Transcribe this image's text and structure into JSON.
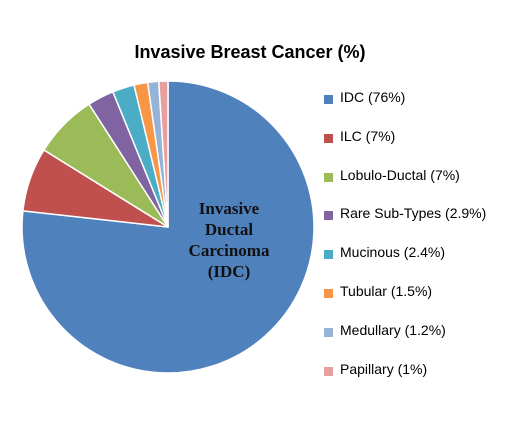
{
  "chart_data": {
    "type": "pie",
    "title": "Invasive Breast Cancer (%)",
    "center_annotation": [
      "Invasive",
      "Ductal",
      "Carcinoma",
      "(IDC)"
    ],
    "legend_position": "right",
    "slices": [
      {
        "name": "IDC",
        "value": 76,
        "legend": "IDC (76%)",
        "color": "#4f81bd"
      },
      {
        "name": "ILC",
        "value": 7,
        "legend": "ILC (7%)",
        "color": "#c0504d"
      },
      {
        "name": "Lobulo-Ductal",
        "value": 7,
        "legend": "Lobulo-Ductal (7%)",
        "color": "#9bbb59"
      },
      {
        "name": "Rare Sub-Types",
        "value": 2.9,
        "legend": "Rare Sub-Types (2.9%)",
        "color": "#8064a2"
      },
      {
        "name": "Mucinous",
        "value": 2.4,
        "legend": "Mucinous (2.4%)",
        "color": "#4bacc6"
      },
      {
        "name": "Tubular",
        "value": 1.5,
        "legend": "Tubular (1.5%)",
        "color": "#f79646"
      },
      {
        "name": "Medullary",
        "value": 1.2,
        "legend": "Medullary (1.2%)",
        "color": "#95b3d7"
      },
      {
        "name": "Papillary",
        "value": 1,
        "legend": "Papillary (1%)",
        "color": "#e6a0a0"
      }
    ]
  }
}
